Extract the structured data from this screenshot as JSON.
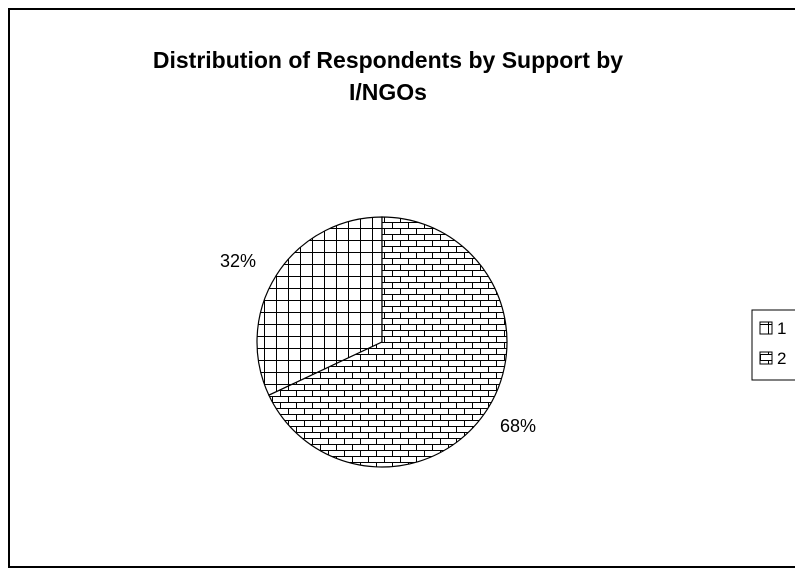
{
  "chart_data": {
    "type": "pie",
    "title_lines": [
      "Distribution of Respondents by Support by",
      "I/NGOs"
    ],
    "slices": [
      {
        "label": "1",
        "value": 32,
        "display": "32%",
        "pattern": "grid"
      },
      {
        "label": "2",
        "value": 68,
        "display": "68%",
        "pattern": "brick"
      }
    ],
    "legend_position": "right",
    "colors": {
      "stroke": "#000000",
      "background": "#ffffff"
    }
  }
}
